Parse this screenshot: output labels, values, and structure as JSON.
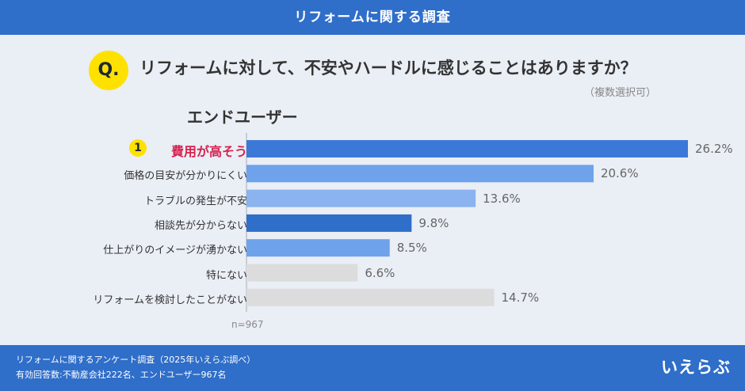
{
  "header": {
    "title": "リフォームに関する調査"
  },
  "question": {
    "badge": "Q.",
    "text": "リフォームに対して、不安やハードルに感じることはありますか？",
    "note": "（複数選択可）"
  },
  "section_title": "エンドユーザー",
  "rank_badge": "1",
  "sample_size": "n=967",
  "footer": {
    "line1": "リフォームに関するアンケート調査（2025年いえらぶ調べ）",
    "line2": "有効回答数:不動産会社222名、エンドユーザー967名",
    "logo": "いえらぶ"
  },
  "colors": {
    "header": "#2f6ec9",
    "bar1": "#3c78d8",
    "bar2": "#6ea2ea",
    "bar3": "#8ab3ef",
    "bar4": "#2f6ec9",
    "bar5": "#6ea2ea",
    "bar6": "#dcdcdc",
    "bar7": "#dcdcdc",
    "top_label": "#d6234f"
  },
  "chart_data": {
    "type": "bar",
    "orientation": "horizontal",
    "categories": [
      "費用が高そう",
      "価格の目安が分かりにくい",
      "トラブルの発生が不安",
      "相談先が分からない",
      "仕上がりのイメージが湧かない",
      "特にない",
      "リフォームを検討したことがない"
    ],
    "values": [
      26.2,
      20.6,
      13.6,
      9.8,
      8.5,
      6.6,
      14.7
    ],
    "value_labels": [
      "26.2%",
      "20.6%",
      "13.6%",
      "9.8%",
      "8.5%",
      "6.6%",
      "14.7%"
    ],
    "xlim": [
      0,
      26.2
    ],
    "title": "エンドユーザー"
  }
}
